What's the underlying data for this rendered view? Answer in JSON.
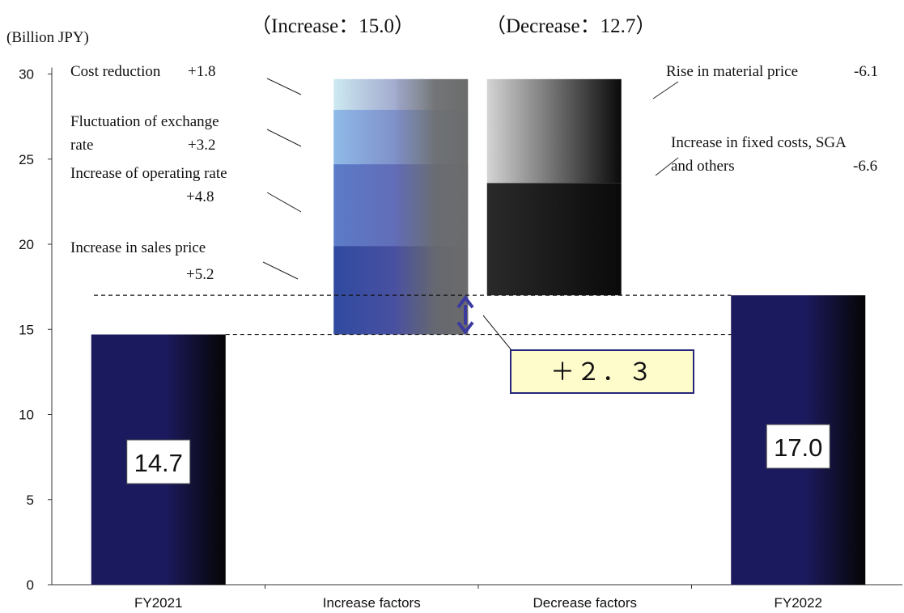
{
  "chart_data": {
    "type": "bar",
    "subtype": "waterfall",
    "ylabel": "(Billion JPY)",
    "ylim": [
      0,
      30
    ],
    "yticks": [
      "0",
      "5",
      "10",
      "15",
      "20",
      "25",
      "30"
    ],
    "categories": [
      "FY2021",
      "Increase factors",
      "Decrease factors",
      "FY2022"
    ],
    "summary": {
      "increase_total_label": "（Increase：15.0）",
      "decrease_total_label": "（Decrease：12.7）",
      "change_label": "＋２．３",
      "increase_total": 15.0,
      "decrease_total": 12.7,
      "change": 2.3
    },
    "totals": [
      {
        "category": "FY2021",
        "value": 14.7,
        "label": "14.7"
      },
      {
        "category": "FY2022",
        "value": 17.0,
        "label": "17.0"
      }
    ],
    "increase_segments": [
      {
        "name": "Increase in sales price",
        "value": 5.2,
        "label_lines": [
          "Increase in sales price",
          "+5.2"
        ]
      },
      {
        "name": "Increase of operating rate",
        "value": 4.8,
        "label_lines": [
          "Increase of operating rate",
          "+4.8"
        ]
      },
      {
        "name": "Fluctuation of exchange rate",
        "value": 3.2,
        "label_lines": [
          "Fluctuation of exchange",
          "rate",
          "+3.2"
        ]
      },
      {
        "name": "Cost reduction",
        "value": 1.8,
        "label_lines": [
          "Cost reduction",
          "+1.8"
        ]
      }
    ],
    "decrease_segments": [
      {
        "name": "Increase in fixed costs, SGA and others",
        "value": -6.6,
        "label_lines": [
          "Increase in fixed costs, SGA",
          "and others",
          "-6.6"
        ]
      },
      {
        "name": "Rise in material price",
        "value": -6.1,
        "label_lines": [
          "Rise in material price",
          "-6.1"
        ]
      }
    ],
    "grid": false,
    "legend": "none",
    "colors": {
      "total_bar": "#1c1a5e",
      "increase_segments": [
        "#2f4aa0",
        "#5b7cc8",
        "#8fbbe8",
        "#cdeaf1"
      ],
      "increase_fade": "#6b6b6b",
      "decrease_segments": [
        "#1e1e1e",
        "#b8b8b8"
      ],
      "callout_fill": "#fffccc",
      "callout_border": "#26267a",
      "arrow": "#3a3aa0"
    }
  }
}
